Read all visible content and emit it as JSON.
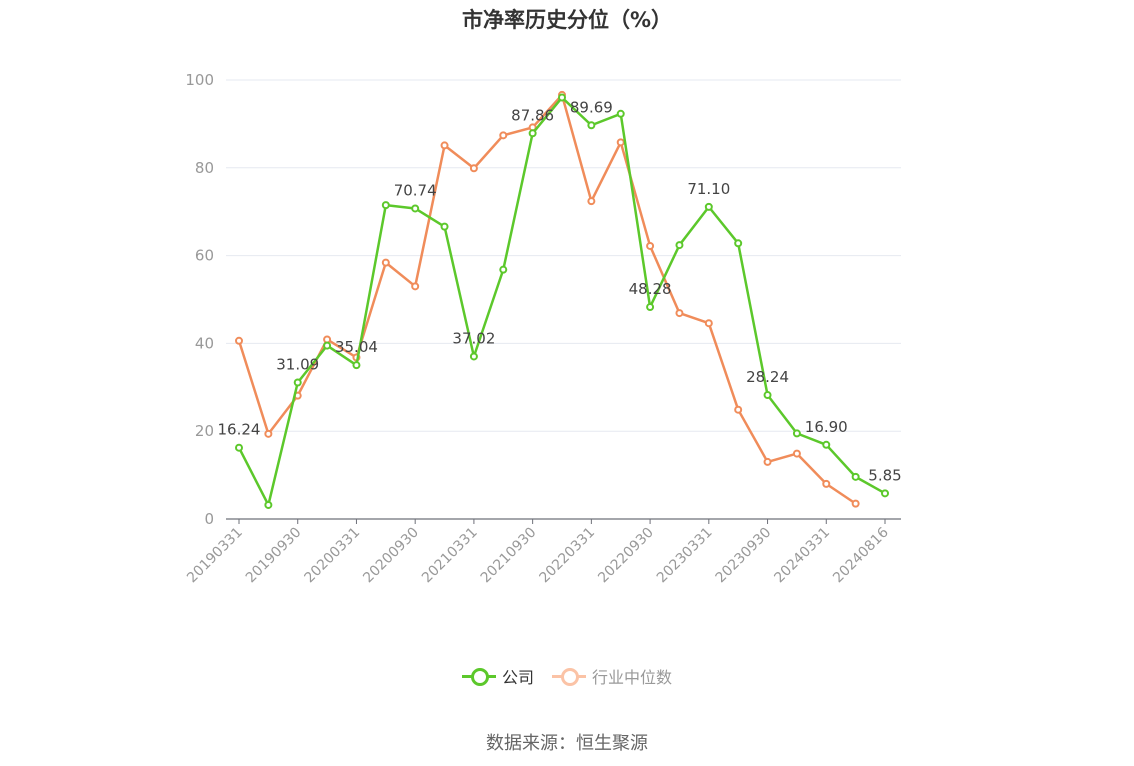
{
  "chart_data": {
    "type": "line",
    "title": "市净率历史分位（%）",
    "ylim": [
      0,
      100
    ],
    "yticks": [
      0,
      20,
      40,
      60,
      80,
      100
    ],
    "grid": true,
    "legend_position": "bottom",
    "categories": [
      "20190331",
      "20190630",
      "20190930",
      "20191231",
      "20200331",
      "20200630",
      "20200930",
      "20201231",
      "20210331",
      "20210630",
      "20210930",
      "20211231",
      "20220331",
      "20220630",
      "20220930",
      "20221231",
      "20230331",
      "20230630",
      "20230930",
      "20231231",
      "20240331",
      "20240630",
      "20240816"
    ],
    "tick_labels": [
      "20190331",
      "20190930",
      "20200331",
      "20200930",
      "20210331",
      "20210930",
      "20220331",
      "20220930",
      "20230331",
      "20230930",
      "20240331",
      "20240816"
    ],
    "series": [
      {
        "name": "公司",
        "color": "#5cc82b",
        "values": [
          16.24,
          3.2,
          31.09,
          39.5,
          35.04,
          71.5,
          70.74,
          66.6,
          37.02,
          56.8,
          87.86,
          96.0,
          89.69,
          92.3,
          48.28,
          62.4,
          71.1,
          62.8,
          28.24,
          19.5,
          16.9,
          9.6,
          5.85
        ],
        "labels": {
          "0": "16.24",
          "2": "31.09",
          "4": "35.04",
          "6": "70.74",
          "8": "37.02",
          "10": "87.86",
          "12": "89.69",
          "14": "48.28",
          "16": "71.10",
          "18": "28.24",
          "20": "16.90",
          "22": "5.85"
        }
      },
      {
        "name": "行业中位数",
        "color": "#f08c5a",
        "values": [
          40.6,
          19.4,
          28.1,
          40.9,
          36.8,
          58.4,
          53.0,
          85.1,
          79.9,
          87.4,
          89.2,
          96.6,
          72.4,
          85.8,
          62.2,
          46.9,
          44.6,
          24.9,
          13.0,
          14.9,
          8.0,
          3.5,
          null
        ]
      }
    ]
  },
  "source_text": "数据来源：恒生聚源"
}
